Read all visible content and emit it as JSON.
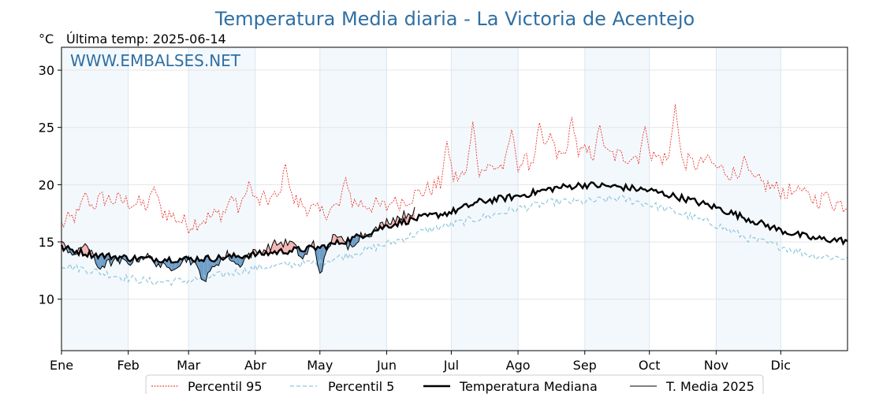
{
  "chart_data": {
    "type": "line",
    "title": "Temperatura Media diaria - La Victoria de Acentejo",
    "unit_label": "°C",
    "last_temp_label": "Última temp: 2025-06-14",
    "watermark": "WWW.EMBALSES.NET",
    "x_tick_labels": [
      "Ene",
      "Feb",
      "Mar",
      "Abr",
      "May",
      "Jun",
      "Jul",
      "Ago",
      "Sep",
      "Oct",
      "Nov",
      "Dic"
    ],
    "month_starts": [
      1,
      32,
      60,
      91,
      121,
      152,
      182,
      213,
      244,
      274,
      305,
      335
    ],
    "xlim": [
      1,
      366
    ],
    "y_ticks": [
      10,
      15,
      20,
      25,
      30
    ],
    "ylim": [
      5.5,
      32
    ],
    "grid": true,
    "legend_position": "bottom-center",
    "series": [
      {
        "name": "Percentil 95",
        "color": "#e8231a",
        "style": "dotted",
        "anchors": [
          [
            1,
            16.5
          ],
          [
            10,
            17.5
          ],
          [
            20,
            18.8
          ],
          [
            32,
            18.5
          ],
          [
            45,
            18.0
          ],
          [
            60,
            16.5
          ],
          [
            75,
            17.5
          ],
          [
            91,
            18.5
          ],
          [
            105,
            19.0
          ],
          [
            121,
            17.5
          ],
          [
            135,
            18.5
          ],
          [
            152,
            18.0
          ],
          [
            170,
            19.5
          ],
          [
            182,
            20.5
          ],
          [
            200,
            21.5
          ],
          [
            213,
            21.8
          ],
          [
            230,
            22.5
          ],
          [
            244,
            22.8
          ],
          [
            260,
            22.5
          ],
          [
            274,
            22.5
          ],
          [
            290,
            22.0
          ],
          [
            305,
            21.5
          ],
          [
            320,
            20.5
          ],
          [
            335,
            19.5
          ],
          [
            350,
            18.8
          ],
          [
            366,
            18.2
          ]
        ],
        "spikes": [
          [
            12,
            19.3
          ],
          [
            44,
            19.8
          ],
          [
            80,
            19.0
          ],
          [
            88,
            20.3
          ],
          [
            105,
            21.8
          ],
          [
            133,
            20.6
          ],
          [
            155,
            18.5
          ],
          [
            180,
            23.8
          ],
          [
            192,
            25.5
          ],
          [
            210,
            24.8
          ],
          [
            223,
            25.4
          ],
          [
            228,
            24.5
          ],
          [
            238,
            25.9
          ],
          [
            251,
            25.2
          ],
          [
            272,
            25.1
          ],
          [
            286,
            27.0
          ],
          [
            301,
            22.6
          ],
          [
            318,
            22.5
          ],
          [
            343,
            19.9
          ],
          [
            356,
            19.4
          ]
        ]
      },
      {
        "name": "Percentil 5",
        "color": "#8fc7dc",
        "style": "dashed",
        "anchors": [
          [
            1,
            13.0
          ],
          [
            20,
            12.3
          ],
          [
            32,
            11.8
          ],
          [
            45,
            11.5
          ],
          [
            60,
            11.6
          ],
          [
            75,
            12.1
          ],
          [
            91,
            12.7
          ],
          [
            105,
            13.0
          ],
          [
            121,
            13.2
          ],
          [
            135,
            13.9
          ],
          [
            152,
            14.8
          ],
          [
            170,
            16.0
          ],
          [
            182,
            16.5
          ],
          [
            200,
            17.3
          ],
          [
            213,
            17.9
          ],
          [
            230,
            18.5
          ],
          [
            244,
            18.5
          ],
          [
            260,
            18.8
          ],
          [
            274,
            18.3
          ],
          [
            290,
            17.4
          ],
          [
            305,
            16.5
          ],
          [
            320,
            15.3
          ],
          [
            335,
            14.6
          ],
          [
            350,
            13.8
          ],
          [
            366,
            13.6
          ]
        ]
      },
      {
        "name": "Temperatura Mediana",
        "color": "#000000",
        "style": "thick",
        "anchors": [
          [
            1,
            14.5
          ],
          [
            15,
            13.9
          ],
          [
            32,
            13.6
          ],
          [
            45,
            13.5
          ],
          [
            60,
            13.5
          ],
          [
            75,
            13.6
          ],
          [
            91,
            13.9
          ],
          [
            105,
            14.2
          ],
          [
            121,
            14.5
          ],
          [
            135,
            15.2
          ],
          [
            152,
            16.4
          ],
          [
            165,
            17.0
          ],
          [
            182,
            17.6
          ],
          [
            195,
            18.5
          ],
          [
            213,
            19.0
          ],
          [
            230,
            19.7
          ],
          [
            244,
            20.0
          ],
          [
            260,
            19.8
          ],
          [
            274,
            19.5
          ],
          [
            290,
            18.8
          ],
          [
            305,
            18.0
          ],
          [
            320,
            17.0
          ],
          [
            335,
            16.0
          ],
          [
            350,
            15.3
          ],
          [
            366,
            15.1
          ]
        ]
      },
      {
        "name": "T. Media 2025",
        "color": "#000000",
        "style": "thin",
        "end_day": 165,
        "anchors": [
          [
            1,
            14.8
          ],
          [
            8,
            13.8
          ],
          [
            12,
            15.0
          ],
          [
            18,
            12.8
          ],
          [
            25,
            13.3
          ],
          [
            32,
            13.2
          ],
          [
            40,
            13.8
          ],
          [
            50,
            12.6
          ],
          [
            60,
            13.6
          ],
          [
            63,
            12.9
          ],
          [
            68,
            11.6
          ],
          [
            72,
            13.0
          ],
          [
            78,
            13.9
          ],
          [
            83,
            12.9
          ],
          [
            88,
            13.9
          ],
          [
            95,
            14.3
          ],
          [
            101,
            14.9
          ],
          [
            108,
            14.9
          ],
          [
            113,
            13.5
          ],
          [
            118,
            14.9
          ],
          [
            121,
            12.3
          ],
          [
            128,
            15.9
          ],
          [
            134,
            14.4
          ],
          [
            140,
            15.6
          ],
          [
            146,
            15.9
          ],
          [
            152,
            16.8
          ],
          [
            158,
            17.2
          ],
          [
            165,
            17.7
          ]
        ]
      }
    ]
  }
}
